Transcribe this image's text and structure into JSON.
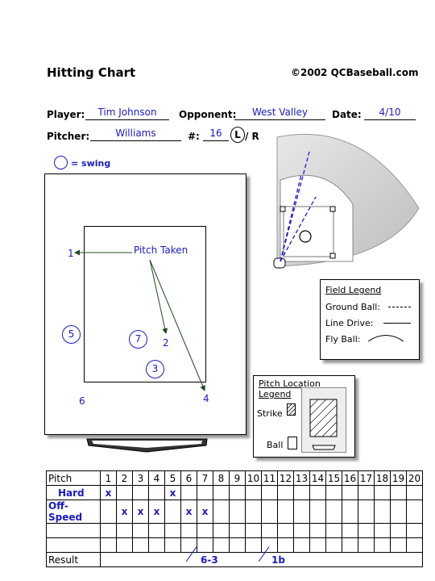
{
  "header": {
    "title": "Hitting Chart",
    "copyright": "©2002 QCBaseball.com"
  },
  "info": {
    "player_label": "Player:",
    "player_value": "Tim Johnson",
    "opponent_label": "Opponent:",
    "opponent_value": "West Valley",
    "date_label": "Date:",
    "date_value": "4/10",
    "pitcher_label": "Pitcher:",
    "pitcher_value": "Williams",
    "number_label": "#:",
    "number_value": "16",
    "hand_left": "L",
    "hand_sep": "/ R"
  },
  "swing_legend": {
    "text": "= swing"
  },
  "strike_zone": {
    "annotation": "Pitch Taken",
    "pitches": [
      "1",
      "2",
      "3",
      "4",
      "5",
      "6",
      "7"
    ],
    "circled": [
      "3",
      "5",
      "7"
    ]
  },
  "field_legend": {
    "title": "Field Legend",
    "ground_ball": "Ground Ball:",
    "line_drive": "Line Drive:",
    "fly_ball": "Fly Ball:"
  },
  "location_legend": {
    "title_line1": "Pitch Location",
    "title_line2": "Legend",
    "strike": "Strike",
    "ball": "Ball"
  },
  "grid": {
    "pitch_label": "Pitch",
    "columns": [
      "1",
      "2",
      "3",
      "4",
      "5",
      "6",
      "7",
      "8",
      "9",
      "10",
      "11",
      "12",
      "13",
      "14",
      "15",
      "16",
      "17",
      "18",
      "19",
      "20"
    ],
    "rows": [
      {
        "label": "Hard",
        "marks": [
          "x",
          "",
          "",
          "",
          "x",
          "",
          "",
          "",
          "",
          "",
          "",
          "",
          "",
          "",
          "",
          "",
          "",
          "",
          "",
          ""
        ]
      },
      {
        "label": "Off-Speed",
        "marks": [
          "",
          "x",
          "x",
          "x",
          "",
          "x",
          "x",
          "",
          "",
          "",
          "",
          "",
          "",
          "",
          "",
          "",
          "",
          "",
          "",
          ""
        ]
      },
      {
        "label": "",
        "marks": [
          "",
          "",
          "",
          "",
          "",
          "",
          "",
          "",
          "",
          "",
          "",
          "",
          "",
          "",
          "",
          "",
          "",
          "",
          "",
          ""
        ]
      },
      {
        "label": "",
        "marks": [
          "",
          "",
          "",
          "",
          "",
          "",
          "",
          "",
          "",
          "",
          "",
          "",
          "",
          "",
          "",
          "",
          "",
          "",
          "",
          ""
        ]
      }
    ],
    "result_label": "Result",
    "results": [
      {
        "text": "6-3"
      },
      {
        "text": "1b"
      }
    ]
  }
}
